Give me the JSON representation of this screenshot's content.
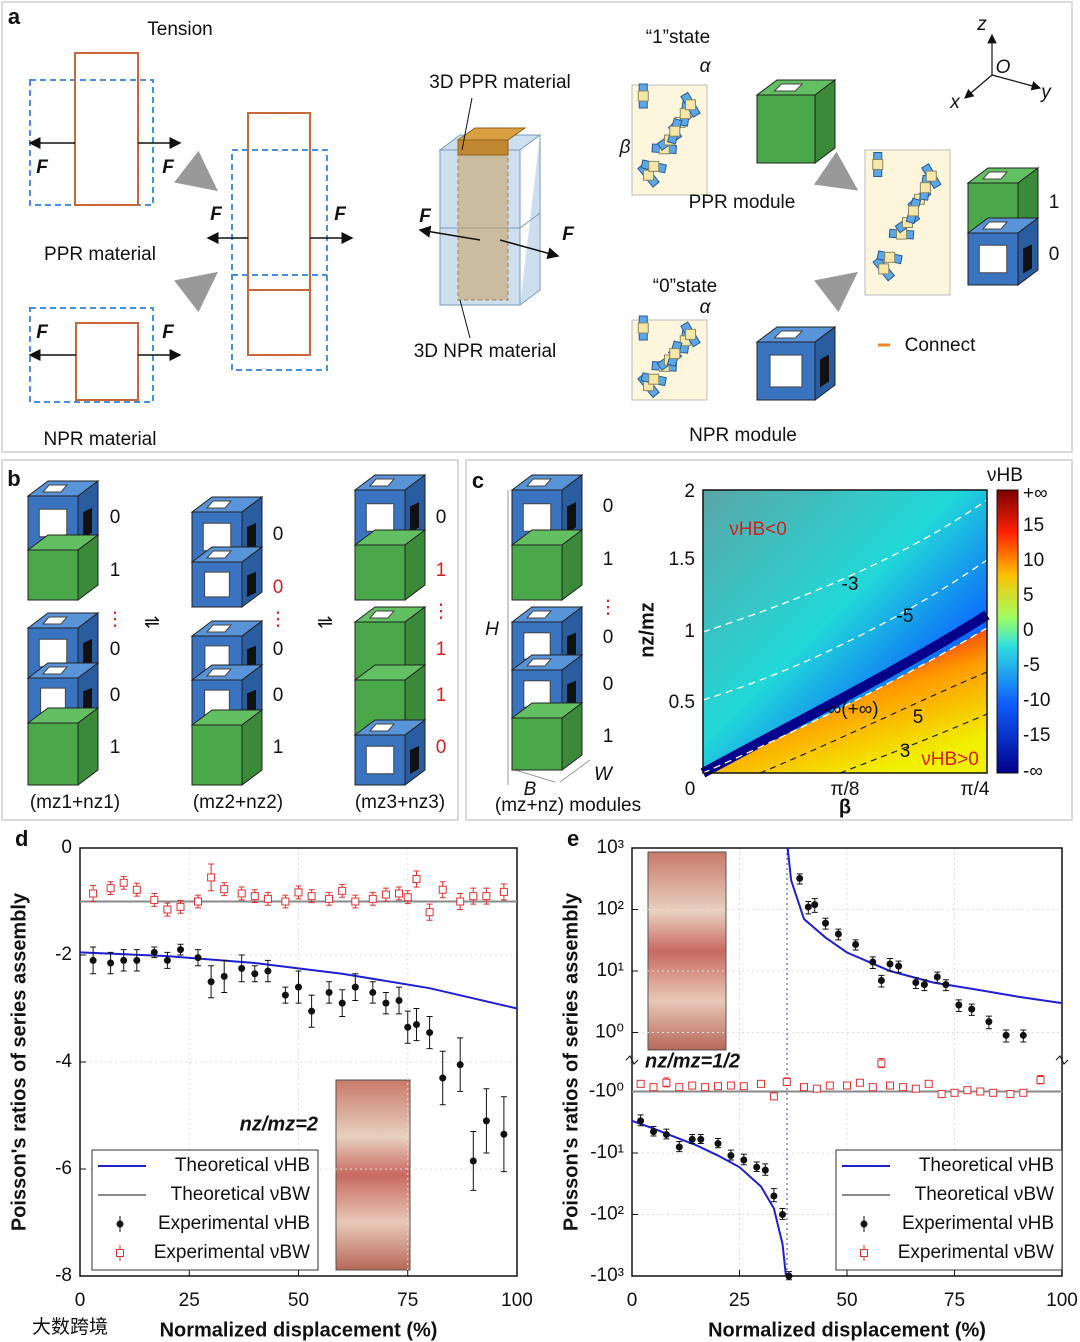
{
  "panel_a": {
    "label": "a",
    "tension": "Tension",
    "forces": [
      "F",
      "F",
      "F",
      "F",
      "F",
      "F",
      "F",
      "F"
    ],
    "ppr_material": "PPR material",
    "npr_material": "NPR material",
    "ppr_3d": "3D PPR material",
    "npr_3d": "3D NPR material",
    "state_1": "“1”state",
    "state_0": "“0”state",
    "alpha_1": "α",
    "alpha_0": "α",
    "beta": "β",
    "ppr_module": "PPR module",
    "npr_module": "NPR module",
    "bit_1": "1",
    "bit_0": "0",
    "connect": "Connect",
    "axes": {
      "z": "z",
      "o": "O",
      "y": "y",
      "x": "x"
    }
  },
  "panel_b": {
    "label": "b",
    "columns": [
      {
        "bits": [
          "0",
          "1",
          "⋮",
          "0",
          "0",
          "1"
        ],
        "caption": "(mz1+nz1)"
      },
      {
        "bits": [
          "0",
          "0",
          "⋮",
          "0",
          "0",
          "1"
        ],
        "caption": "(mz2+nz2)"
      },
      {
        "bits": [
          "0",
          "1",
          "⋮",
          "1",
          "1",
          "0"
        ],
        "caption": "(mz3+nz3)"
      }
    ],
    "equilibrium": [
      "⇌",
      "⇌"
    ]
  },
  "panel_c": {
    "label": "c",
    "height": "H",
    "breadth": "B",
    "width": "W",
    "caption": "(mz+nz) modules",
    "bits": [
      "0",
      "1",
      "⋮",
      "0",
      "0",
      "1"
    ],
    "y_label": "nz/mz",
    "x_label": "β",
    "yticks": [
      "2",
      "1.5",
      "1",
      "0.5"
    ],
    "xticks": [
      "0",
      "π/8",
      "π/4"
    ],
    "contours": [
      "-3",
      "-5",
      "-∞(+∞)",
      "5",
      "3"
    ],
    "region_neg": "νHB<0",
    "region_pos": "νHB>0",
    "colorbar_title": "νHB",
    "colorbar_ticks": [
      "+∞",
      "15",
      "10",
      "5",
      "0",
      "-5",
      "-10",
      "-15",
      "-∞"
    ]
  },
  "watermark": "大数跨境",
  "chart_data": [
    {
      "type": "scatter",
      "panel": "d",
      "scale": "linear",
      "x_label": "Normalized displacement (%)",
      "y_label": "Poisson's ratios of series assembly",
      "xlim": [
        0,
        100
      ],
      "xticks": [
        0,
        25,
        50,
        75,
        100
      ],
      "ylim": [
        -8,
        0
      ],
      "yticks": [
        0,
        -2,
        -4,
        -6,
        -8
      ],
      "grid": true,
      "legend": "lower left",
      "annotation": "nz/mz=2",
      "series": [
        {
          "name": "Theoretical νHB",
          "style": "line",
          "color": "#1f1fd0",
          "x": [
            0,
            20,
            40,
            60,
            80,
            100
          ],
          "values": [
            -1.95,
            -2.02,
            -2.15,
            -2.35,
            -2.62,
            -3.0
          ]
        },
        {
          "name": "Theoretical νBW",
          "style": "line",
          "color": "#8a8a8a",
          "x": [
            0,
            100
          ],
          "values": [
            -1,
            -1
          ]
        },
        {
          "name": "Experimental νHB",
          "style": "filled",
          "color": "#111111",
          "x": [
            3,
            7,
            10,
            13,
            17,
            20,
            23,
            27,
            30,
            33,
            37,
            40,
            43,
            47,
            50,
            53,
            57,
            60,
            63,
            67,
            70,
            73,
            75,
            77,
            80,
            83,
            87,
            90,
            93,
            97
          ],
          "values": [
            -2.1,
            -2.15,
            -2.1,
            -2.1,
            -1.95,
            -2.1,
            -1.9,
            -2.05,
            -2.5,
            -2.4,
            -2.25,
            -2.35,
            -2.3,
            -2.75,
            -2.6,
            -3.05,
            -2.7,
            -2.9,
            -2.6,
            -2.7,
            -2.9,
            -2.85,
            -3.35,
            -3.3,
            -3.45,
            -4.3,
            -4.05,
            -5.85,
            -5.1,
            -5.35
          ],
          "errors": [
            0.25,
            0.2,
            0.2,
            0.2,
            0.1,
            0.15,
            0.1,
            0.15,
            0.3,
            0.3,
            0.25,
            0.15,
            0.2,
            0.15,
            0.3,
            0.3,
            0.2,
            0.25,
            0.25,
            0.2,
            0.2,
            0.25,
            0.3,
            0.3,
            0.3,
            0.5,
            0.5,
            0.55,
            0.6,
            0.7
          ]
        },
        {
          "name": "Experimental νBW",
          "style": "open",
          "color": "#e03030",
          "x": [
            3,
            7,
            10,
            13,
            17,
            20,
            23,
            27,
            30,
            33,
            37,
            40,
            43,
            47,
            50,
            53,
            57,
            60,
            63,
            67,
            70,
            73,
            75,
            77,
            80,
            83,
            87,
            90,
            93,
            97
          ],
          "values": [
            -0.85,
            -0.75,
            -0.65,
            -0.78,
            -0.97,
            -1.15,
            -1.1,
            -1.0,
            -0.55,
            -0.77,
            -0.85,
            -0.9,
            -0.95,
            -1.0,
            -0.83,
            -0.9,
            -0.95,
            -0.8,
            -1.0,
            -0.95,
            -0.87,
            -0.85,
            -0.92,
            -0.58,
            -1.2,
            -0.78,
            -1.0,
            -0.9,
            -0.9,
            -0.82
          ],
          "errors": [
            0.15,
            0.12,
            0.12,
            0.12,
            0.12,
            0.12,
            0.12,
            0.12,
            0.25,
            0.12,
            0.12,
            0.12,
            0.12,
            0.12,
            0.12,
            0.12,
            0.12,
            0.12,
            0.12,
            0.12,
            0.12,
            0.12,
            0.12,
            0.15,
            0.15,
            0.15,
            0.15,
            0.15,
            0.15,
            0.15
          ]
        }
      ]
    },
    {
      "type": "scatter",
      "panel": "e",
      "scale": "split-log",
      "x_label": "Normalized displacement (%)",
      "y_label": "Poisson's ratios of series assembly",
      "xlim": [
        0,
        100
      ],
      "xticks": [
        0,
        25,
        50,
        75,
        100
      ],
      "ylim": [
        -1000,
        1000
      ],
      "yticks": [
        {
          "value": 1000,
          "label": "10³"
        },
        {
          "value": 100,
          "label": "10²"
        },
        {
          "value": 10,
          "label": "10¹"
        },
        {
          "value": 1,
          "label": "10⁰"
        },
        {
          "value": -1,
          "label": "-10⁰"
        },
        {
          "value": -10,
          "label": "-10¹"
        },
        {
          "value": -100,
          "label": "-10²"
        },
        {
          "value": -1000,
          "label": "-10³"
        }
      ],
      "grid": true,
      "legend": "lower right",
      "annotation": "nz/mz=1/2",
      "series": [
        {
          "name": "Theoretical νHB",
          "style": "line",
          "color": "#1f1fd0",
          "x": [
            0,
            5,
            10,
            15,
            20,
            25,
            30,
            33,
            35,
            35.8,
            null,
            36.2,
            37,
            40,
            45,
            50,
            60,
            70,
            80,
            90,
            100
          ],
          "values": [
            -3,
            -4,
            -5.5,
            -7.5,
            -11,
            -17,
            -35,
            -80,
            -300,
            -1000,
            null,
            1000,
            300,
            70,
            35,
            20,
            10,
            6.5,
            5,
            3.8,
            3
          ]
        },
        {
          "name": "Theoretical νBW",
          "style": "line",
          "color": "#8a8a8a",
          "x": [
            0,
            100
          ],
          "values": [
            -1,
            -1
          ]
        },
        {
          "name": "Experimental νHB",
          "style": "filled",
          "color": "#111111",
          "x": [
            2,
            5,
            8,
            11,
            14,
            16,
            20,
            23,
            26,
            29,
            31,
            33,
            35,
            36.5,
            39,
            41,
            42.5,
            45,
            48,
            52,
            56,
            58,
            60,
            62,
            66,
            68,
            71,
            73,
            76,
            79,
            83,
            87,
            91
          ],
          "values": [
            -3,
            -4.5,
            -5,
            -8,
            -6,
            -6,
            -7,
            -11,
            -13,
            -17,
            -19,
            -50,
            -100,
            -1000,
            320,
            110,
            120,
            60,
            40,
            27,
            14,
            7,
            13,
            12,
            6.5,
            6,
            8,
            6,
            2.8,
            2.4,
            1.5,
            0.9,
            0.9
          ],
          "errors": [
            0.6,
            0.8,
            0.9,
            1.5,
            1,
            1,
            1.2,
            2,
            2.5,
            3,
            4,
            12,
            20,
            150,
            60,
            25,
            30,
            12,
            8,
            5,
            3,
            1.5,
            3,
            2.5,
            1.3,
            1.2,
            1.6,
            1.2,
            0.6,
            0.5,
            0.35,
            0.2,
            0.2
          ]
        },
        {
          "name": "Experimental νBW",
          "style": "open",
          "color": "#e03030",
          "x": [
            2,
            5,
            8,
            11,
            14,
            17,
            20,
            23,
            26,
            30,
            33,
            36,
            40,
            43,
            46,
            50,
            53,
            56,
            58,
            60,
            63,
            66,
            69,
            72,
            75,
            78,
            81,
            84,
            88,
            91,
            95
          ],
          "values": [
            -0.75,
            -0.85,
            -0.72,
            -0.85,
            -0.8,
            -0.85,
            -0.82,
            -0.8,
            -0.82,
            -0.75,
            -1.2,
            -0.7,
            -0.85,
            -0.9,
            -0.8,
            -0.8,
            -0.72,
            -0.85,
            -0.35,
            -0.8,
            -0.85,
            -0.9,
            -0.75,
            -1.1,
            -1.05,
            -0.95,
            -1.0,
            -1.05,
            -1.1,
            -1.05,
            -0.65
          ],
          "errors": [
            0.08,
            0.08,
            0.12,
            0.08,
            0.08,
            0.08,
            0.08,
            0.08,
            0.08,
            0.08,
            0.15,
            0.1,
            0.08,
            0.08,
            0.08,
            0.08,
            0.08,
            0.08,
            0.06,
            0.08,
            0.08,
            0.08,
            0.08,
            0.12,
            0.12,
            0.1,
            0.1,
            0.1,
            0.12,
            0.1,
            0.1
          ]
        }
      ]
    }
  ]
}
